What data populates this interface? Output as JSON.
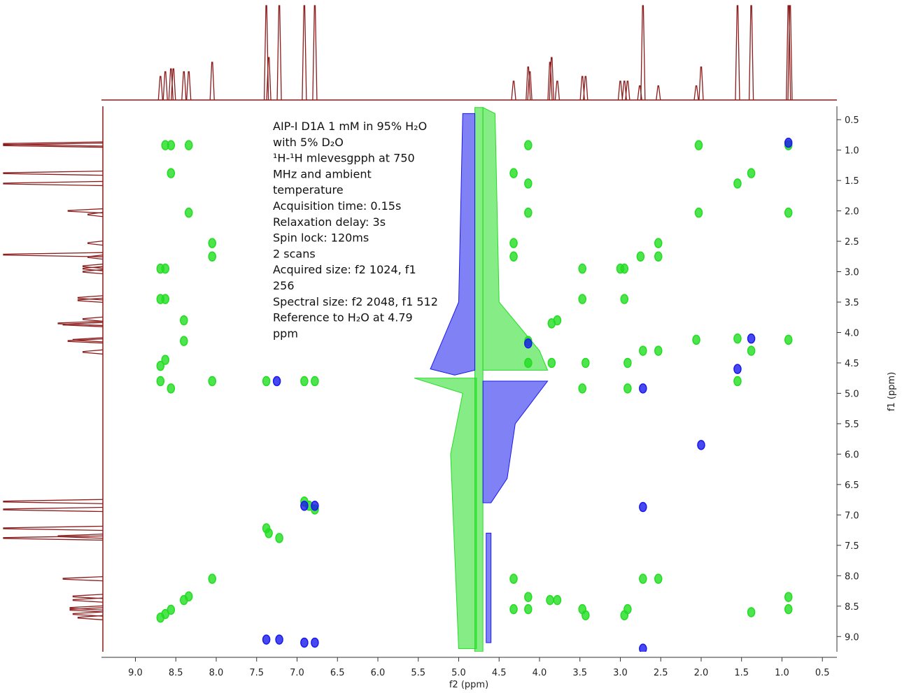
{
  "chart_data": {
    "type": "nmr2d",
    "xlabel": "f2 (ppm)",
    "ylabel": "f1 (ppm)",
    "xlim": [
      9.42,
      0.32
    ],
    "ylim": [
      0.28,
      9.25
    ],
    "xticks": [
      {
        "value": 9,
        "label": "9.0"
      },
      8.5,
      {
        "value": 8,
        "label": "8.0"
      },
      7.5,
      {
        "value": 7,
        "label": "7.0"
      },
      6.5,
      {
        "value": 6,
        "label": "6.0"
      },
      5.5,
      {
        "value": 5,
        "label": "5.0"
      },
      4.5,
      {
        "value": 4,
        "label": "4.0"
      },
      3.5,
      {
        "value": 3,
        "label": "3.0"
      },
      2.5,
      {
        "value": 2,
        "label": "2.0"
      },
      1.5,
      {
        "value": 1,
        "label": "1.0"
      },
      0.5
    ],
    "yticks": [
      0.5,
      {
        "value": 1,
        "label": "1.0"
      },
      1.5,
      {
        "value": 2,
        "label": "2.0"
      },
      2.5,
      {
        "value": 3,
        "label": "3.0"
      },
      3.5,
      {
        "value": 4,
        "label": "4.0"
      },
      4.5,
      {
        "value": 5,
        "label": "5.0"
      },
      5.5,
      {
        "value": 6,
        "label": "6.0"
      },
      6.5,
      {
        "value": 7,
        "label": "7.0"
      },
      7.5,
      {
        "value": 8,
        "label": "8.0"
      },
      8.5,
      {
        "value": 9,
        "label": "9.0"
      }
    ],
    "annotation": [
      "AIP-I D1A 1 mM in 95% H₂O",
      "with 5% D₂O",
      "¹H-¹H mlevesgpph at 750",
      "MHz and ambient",
      "temperature",
      "Acquisition time: 0.15s",
      "Relaxation delay: 3s",
      "Spin lock: 120ms",
      "2 scans",
      "Acquired size: f2 1024, f1",
      "256",
      "Spectral size: f2 2048, f1 512",
      "Reference to H₂O at 4.79",
      "ppm"
    ],
    "projection": {
      "color": "#8b1a1a",
      "x": [
        8.69,
        8.63,
        8.56,
        8.53,
        8.4,
        8.34,
        8.05,
        7.38,
        7.35,
        7.22,
        6.91,
        6.78,
        4.32,
        4.14,
        4.12,
        3.87,
        3.85,
        3.78,
        3.47,
        3.43,
        3.0,
        2.95,
        2.91,
        2.76,
        2.72,
        2.53,
        2.06,
        2.0,
        1.55,
        1.38,
        0.92,
        0.9
      ],
      "values": [
        0.25,
        0.3,
        0.33,
        0.33,
        0.3,
        0.3,
        0.4,
        1,
        0.45,
        1,
        1,
        1,
        0.2,
        0.35,
        0.3,
        0.4,
        0.45,
        0.2,
        0.25,
        0.25,
        0.2,
        0.2,
        0.2,
        0.15,
        1,
        0.15,
        0.15,
        0.35,
        1,
        1,
        1,
        1
      ]
    },
    "series": [
      {
        "color": "#22dd22",
        "x": [
          8.69,
          8.63,
          8.56,
          8.4,
          8.34,
          8.05,
          7.35,
          6.85,
          4.14,
          3.85,
          3.47,
          2.95,
          2.75,
          2.53,
          2.03,
          1.55,
          1.38,
          0.92,
          8.56,
          8.63,
          8.34,
          8.56,
          8.34,
          8.05,
          8.05,
          8.69,
          8.63,
          8.69,
          8.63,
          8.4,
          8.4,
          8.63,
          8.69,
          8.69,
          8.56,
          8.05,
          4.14,
          4.14,
          4.14,
          4.32,
          4.32,
          4.32,
          4.14,
          3.87,
          3.78,
          4.14,
          3.47,
          3.43,
          3.47,
          3.47,
          3.43,
          2.95,
          3.0,
          2.91,
          2.91,
          2.91,
          2.95,
          2.72,
          2.53,
          2.53,
          2.72,
          2.53,
          2.03,
          2.06,
          1.55,
          1.55,
          1.38,
          1.38,
          0.92,
          0.92,
          0.92,
          0.92,
          4.14,
          3.85,
          3.78,
          4.32,
          4.32,
          6.78,
          6.91,
          7.38,
          7.22,
          7.38,
          6.91,
          6.78
        ],
        "values": [
          8.69,
          8.63,
          8.56,
          8.4,
          8.34,
          8.05,
          7.3,
          6.85,
          4.14,
          3.85,
          3.45,
          2.95,
          2.75,
          2.53,
          2.03,
          1.55,
          1.38,
          0.92,
          0.92,
          0.92,
          0.92,
          1.38,
          2.03,
          2.53,
          2.75,
          2.95,
          2.95,
          3.45,
          3.45,
          3.8,
          4.14,
          4.45,
          4.55,
          4.8,
          4.92,
          4.8,
          0.92,
          1.55,
          2.03,
          1.38,
          2.53,
          2.75,
          8.35,
          8.4,
          8.4,
          8.55,
          2.95,
          4.5,
          4.92,
          8.55,
          8.65,
          3.45,
          2.95,
          4.5,
          4.92,
          8.55,
          8.65,
          4.3,
          2.75,
          4.3,
          8.05,
          8.05,
          0.92,
          4.12,
          4.8,
          4.1,
          4.3,
          8.6,
          4.12,
          2.03,
          8.35,
          8.55,
          4.5,
          4.5,
          3.8,
          8.05,
          8.55,
          6.91,
          6.78,
          7.22,
          7.38,
          4.8,
          4.8,
          4.8
        ]
      },
      {
        "color": "#1a1aee",
        "x": [
          7.25,
          6.91,
          6.78,
          2.72,
          2.72,
          1.38,
          2.0,
          7.38,
          7.22,
          6.91,
          6.78,
          2.72,
          1.55,
          0.92,
          4.14
        ],
        "values": [
          4.8,
          6.85,
          6.85,
          4.92,
          6.87,
          4.1,
          5.85,
          9.05,
          9.05,
          9.1,
          9.1,
          9.2,
          4.6,
          0.88,
          4.18
        ]
      }
    ],
    "contours": [
      {
        "color": "#22dd22",
        "x": [
          4.8,
          4.7,
          4.7,
          4.8
        ],
        "values": [
          0.3,
          0.3,
          9.25,
          9.25
        ]
      },
      {
        "color": "#1a1aee",
        "x": [
          4.95,
          4.8,
          4.8,
          5.05,
          5.35,
          5.0
        ],
        "values": [
          0.4,
          0.4,
          4.62,
          4.7,
          4.6,
          3.5
        ]
      },
      {
        "color": "#22dd22",
        "x": [
          4.7,
          4.55,
          4.5,
          4.0,
          3.9,
          4.7
        ],
        "values": [
          0.3,
          0.4,
          3.5,
          4.3,
          4.62,
          4.62
        ]
      },
      {
        "color": "#22dd22",
        "x": [
          5.55,
          4.78,
          4.78,
          5.0,
          5.1,
          4.95
        ],
        "values": [
          4.75,
          4.75,
          9.2,
          9.2,
          6.0,
          5.0
        ]
      },
      {
        "color": "#1a1aee",
        "x": [
          4.7,
          3.9,
          4.3,
          4.4,
          4.6,
          4.7
        ],
        "values": [
          4.8,
          4.8,
          5.5,
          6.4,
          6.8,
          6.8
        ]
      },
      {
        "color": "#1a1aee",
        "x": [
          4.66,
          4.6,
          4.6,
          4.66
        ],
        "values": [
          7.3,
          7.3,
          9.1,
          9.1
        ]
      }
    ]
  }
}
